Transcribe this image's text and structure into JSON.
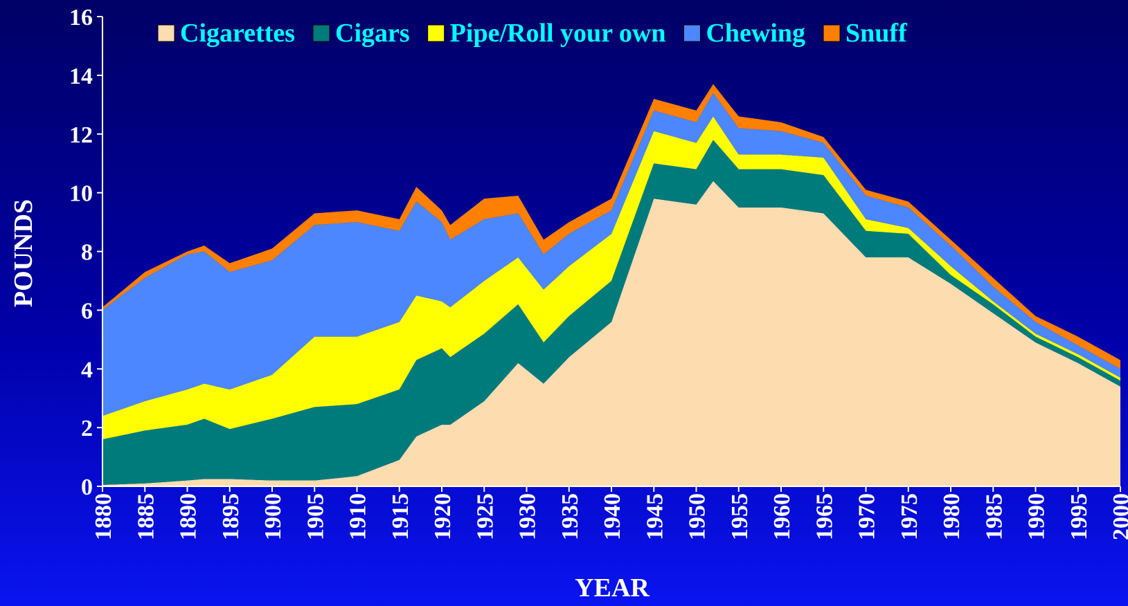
{
  "chart_data": {
    "type": "stacked_area",
    "x_label": "YEAR",
    "y_label": "POUNDS",
    "x": [
      1880,
      1885,
      1890,
      1892,
      1895,
      1900,
      1905,
      1910,
      1915,
      1917,
      1920,
      1921,
      1925,
      1929,
      1932,
      1935,
      1940,
      1945,
      1950,
      1952,
      1955,
      1960,
      1965,
      1970,
      1975,
      1980,
      1985,
      1990,
      1995,
      2000
    ],
    "series": [
      {
        "name": "Cigarettes",
        "color": "#fddcb0",
        "values": [
          0.05,
          0.1,
          0.2,
          0.25,
          0.25,
          0.2,
          0.2,
          0.35,
          0.9,
          1.7,
          2.1,
          2.1,
          2.9,
          4.2,
          3.5,
          4.4,
          5.6,
          9.8,
          9.6,
          10.4,
          9.5,
          9.5,
          9.3,
          7.8,
          7.8,
          6.9,
          5.9,
          4.9,
          4.2,
          3.4
        ]
      },
      {
        "name": "Cigars",
        "color": "#007b7b",
        "values": [
          1.55,
          1.8,
          1.9,
          2.05,
          1.7,
          2.1,
          2.5,
          2.45,
          2.4,
          2.6,
          2.6,
          2.3,
          2.3,
          2.0,
          1.4,
          1.4,
          1.4,
          1.2,
          1.2,
          1.4,
          1.3,
          1.3,
          1.3,
          0.9,
          0.8,
          0.3,
          0.3,
          0.2,
          0.2,
          0.2
        ]
      },
      {
        "name": "Pipe/Roll your own",
        "color": "#ffff00",
        "values": [
          0.8,
          1.0,
          1.2,
          1.2,
          1.35,
          1.5,
          2.4,
          2.3,
          2.3,
          2.2,
          1.6,
          1.7,
          1.8,
          1.6,
          1.8,
          1.7,
          1.6,
          1.1,
          0.9,
          0.8,
          0.5,
          0.5,
          0.6,
          0.4,
          0.2,
          0.3,
          0.1,
          0.1,
          0.1,
          0.1
        ]
      },
      {
        "name": "Chewing",
        "color": "#4c87ff",
        "values": [
          3.6,
          4.2,
          4.6,
          4.5,
          4.0,
          3.9,
          3.8,
          3.9,
          3.1,
          3.2,
          2.7,
          2.3,
          2.1,
          1.5,
          1.2,
          1.1,
          0.8,
          0.7,
          0.7,
          0.8,
          0.9,
          0.8,
          0.5,
          0.8,
          0.7,
          0.7,
          0.5,
          0.4,
          0.3,
          0.3
        ]
      },
      {
        "name": "Snuff",
        "color": "#ff7f00",
        "values": [
          0.1,
          0.2,
          0.1,
          0.2,
          0.3,
          0.4,
          0.4,
          0.4,
          0.4,
          0.5,
          0.4,
          0.5,
          0.7,
          0.6,
          0.5,
          0.4,
          0.4,
          0.4,
          0.4,
          0.3,
          0.4,
          0.3,
          0.2,
          0.2,
          0.2,
          0.2,
          0.3,
          0.2,
          0.3,
          0.3
        ]
      }
    ],
    "xlim": [
      1880,
      2000
    ],
    "xticks": [
      1880,
      1885,
      1890,
      1895,
      1900,
      1905,
      1910,
      1915,
      1920,
      1925,
      1930,
      1935,
      1940,
      1945,
      1950,
      1955,
      1960,
      1965,
      1970,
      1975,
      1980,
      1985,
      1990,
      1995,
      2000
    ],
    "ylim": [
      0,
      16
    ],
    "yticks": [
      0,
      2,
      4,
      6,
      8,
      10,
      12,
      14,
      16
    ],
    "legend": "top"
  }
}
